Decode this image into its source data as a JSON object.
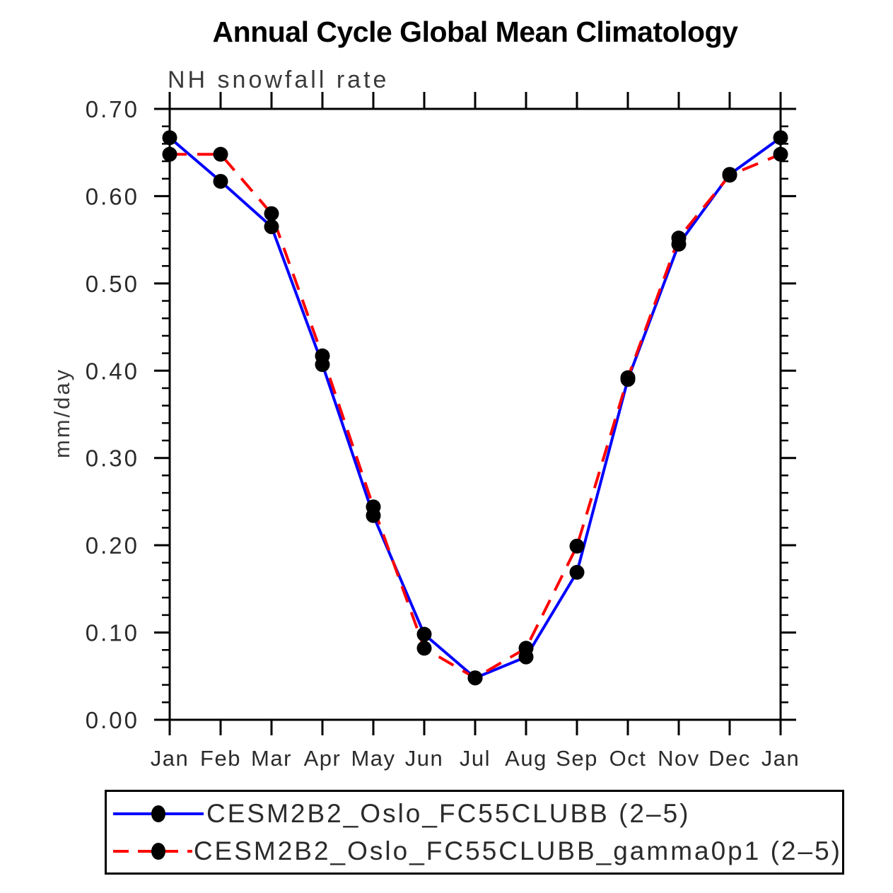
{
  "chart_data": {
    "type": "line",
    "title": "Annual Cycle Global Mean Climatology",
    "subtitle": "NH snowfall rate",
    "ylabel": "mm/day",
    "xlabel": "",
    "x_tick_labels": [
      "Jan",
      "Feb",
      "Mar",
      "Apr",
      "May",
      "Jun",
      "Jul",
      "Aug",
      "Sep",
      "Oct",
      "Nov",
      "Dec",
      "Jan"
    ],
    "y_tick_labels": [
      "0.00",
      "0.10",
      "0.20",
      "0.30",
      "0.40",
      "0.50",
      "0.60",
      "0.70"
    ],
    "ylim": [
      0.0,
      0.7
    ],
    "y_major_step": 0.1,
    "y_minor_step": 0.02,
    "grid": false,
    "legend_position": "bottom",
    "axis_color": "#000000",
    "tick_label_color": "#2b2b2b",
    "marker": "filled-circle",
    "marker_color": "#000000",
    "series": [
      {
        "name": "CESM2B2_Oslo_FC55CLUBB (2–5)",
        "color": "#0000ff",
        "line_style": "solid",
        "values": [
          0.667,
          0.617,
          0.565,
          0.407,
          0.234,
          0.098,
          0.048,
          0.072,
          0.169,
          0.39,
          0.545,
          0.625,
          0.667
        ]
      },
      {
        "name": "CESM2B2_Oslo_FC55CLUBB_gamma0p1 (2–5)",
        "color": "#ff0000",
        "line_style": "dashed",
        "values": [
          0.648,
          0.648,
          0.58,
          0.417,
          0.244,
          0.082,
          0.048,
          0.082,
          0.199,
          0.392,
          0.552,
          0.624,
          0.648
        ]
      }
    ]
  }
}
